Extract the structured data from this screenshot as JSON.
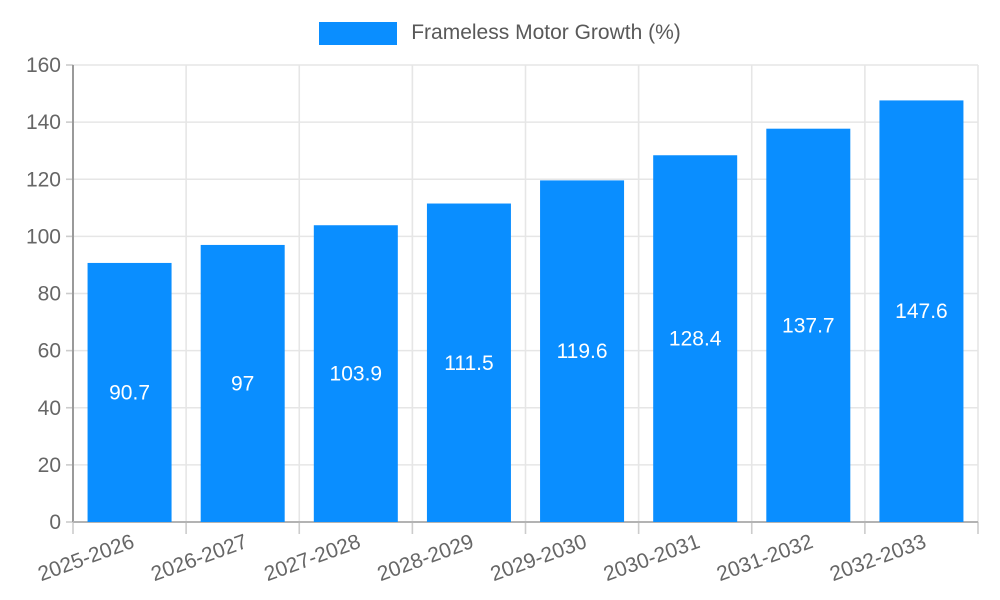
{
  "legend": {
    "label": "Frameless Motor Growth (%)"
  },
  "chart_data": {
    "type": "bar",
    "title": "Frameless Motor Growth (%)",
    "xlabel": "",
    "ylabel": "",
    "categories": [
      "2025-2026",
      "2026-2027",
      "2027-2028",
      "2028-2029",
      "2029-2030",
      "2030-2031",
      "2031-2032",
      "2032-2033"
    ],
    "series": [
      {
        "name": "Frameless Motor Growth (%)",
        "values": [
          90.7,
          97,
          103.9,
          111.5,
          119.6,
          128.4,
          137.7,
          147.6
        ]
      }
    ],
    "value_labels": [
      "90.7",
      "97",
      "103.9",
      "111.5",
      "119.6",
      "128.4",
      "137.7",
      "147.6"
    ],
    "ylim": [
      0,
      160
    ],
    "y_ticks": [
      0,
      20,
      40,
      60,
      80,
      100,
      120,
      140,
      160
    ],
    "grid": true,
    "legend_position": "top",
    "colors": {
      "bar": "#0a8eff",
      "value_label": "#ffffff",
      "axis_text": "#666666",
      "gridline": "#e6e6e6",
      "tick": "#cccccc",
      "y_axis_line": "#9a9a9a",
      "x_axis_line": "#b3b3b3"
    }
  }
}
